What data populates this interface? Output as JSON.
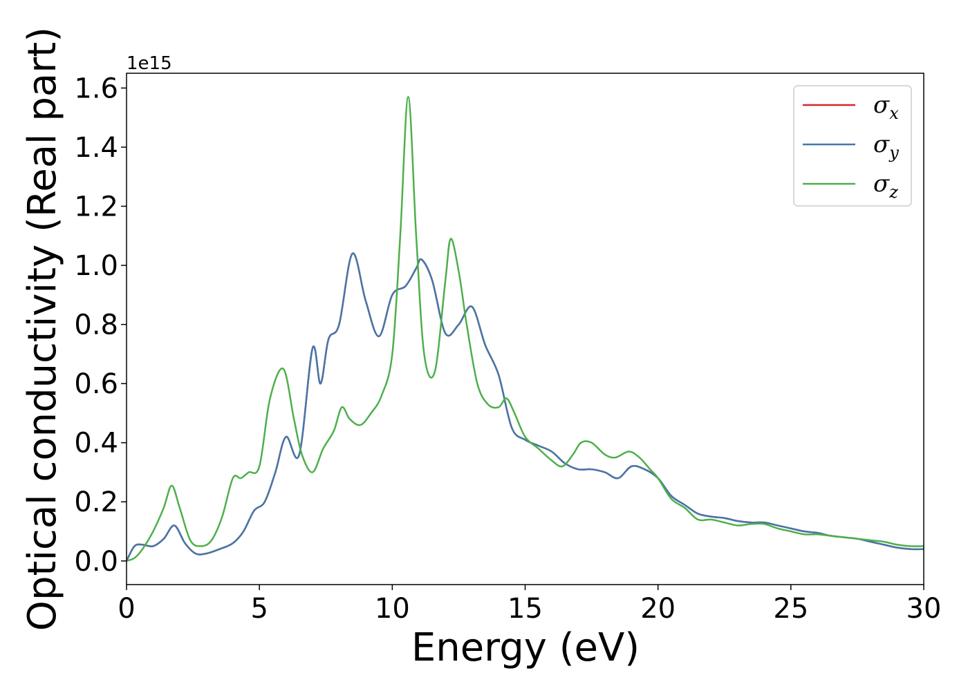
{
  "chart_data": {
    "type": "line",
    "xlabel": "Energy (eV)",
    "ylabel": "Optical conductivity (Real part)",
    "y_offset_label": "1e15",
    "xlim": [
      0,
      30
    ],
    "ylim": [
      -0.08,
      1.65
    ],
    "xticks": [
      0,
      5,
      10,
      15,
      20,
      25,
      30
    ],
    "xtick_labels": [
      "0",
      "5",
      "10",
      "15",
      "20",
      "25",
      "30"
    ],
    "yticks": [
      0.0,
      0.2,
      0.4,
      0.6,
      0.8,
      1.0,
      1.2,
      1.4,
      1.6
    ],
    "ytick_labels": [
      "0.0",
      "0.2",
      "0.4",
      "0.6",
      "0.8",
      "1.0",
      "1.2",
      "1.4",
      "1.6"
    ],
    "grid": false,
    "legend_position": "top-right",
    "series": [
      {
        "name": "σx",
        "symbol": "σ",
        "subscript": "x",
        "color": "#d62728",
        "x": [
          0,
          0.3,
          0.6,
          1.0,
          1.4,
          1.8,
          2.2,
          2.6,
          3.0,
          3.5,
          4.0,
          4.4,
          4.8,
          5.2,
          5.6,
          6.0,
          6.5,
          7.0,
          7.3,
          7.6,
          8.0,
          8.5,
          9.0,
          9.5,
          10.0,
          10.5,
          10.9,
          11.1,
          11.5,
          12.0,
          12.5,
          13.0,
          13.5,
          14.0,
          14.5,
          15.0,
          15.5,
          16.0,
          16.5,
          17.0,
          17.5,
          18.0,
          18.5,
          19.0,
          19.5,
          20.0,
          20.5,
          21.0,
          21.5,
          22.0,
          22.5,
          23.0,
          23.5,
          24.0,
          24.5,
          25.0,
          25.5,
          26.0,
          26.5,
          27.0,
          27.5,
          28.0,
          28.5,
          29.0,
          29.5,
          30.0
        ],
        "y": [
          0.0,
          0.05,
          0.055,
          0.05,
          0.075,
          0.12,
          0.06,
          0.025,
          0.025,
          0.04,
          0.06,
          0.1,
          0.17,
          0.2,
          0.3,
          0.42,
          0.36,
          0.72,
          0.6,
          0.75,
          0.8,
          1.04,
          0.88,
          0.76,
          0.9,
          0.93,
          0.99,
          1.02,
          0.95,
          0.77,
          0.8,
          0.86,
          0.73,
          0.63,
          0.45,
          0.41,
          0.39,
          0.37,
          0.33,
          0.31,
          0.31,
          0.3,
          0.28,
          0.32,
          0.31,
          0.28,
          0.22,
          0.19,
          0.16,
          0.15,
          0.145,
          0.135,
          0.13,
          0.13,
          0.12,
          0.11,
          0.1,
          0.095,
          0.085,
          0.08,
          0.075,
          0.065,
          0.055,
          0.045,
          0.04,
          0.04
        ]
      },
      {
        "name": "σy",
        "symbol": "σ",
        "subscript": "y",
        "color": "#4477aa",
        "x": [
          0,
          0.3,
          0.6,
          1.0,
          1.4,
          1.8,
          2.2,
          2.6,
          3.0,
          3.5,
          4.0,
          4.4,
          4.8,
          5.2,
          5.6,
          6.0,
          6.5,
          7.0,
          7.3,
          7.6,
          8.0,
          8.5,
          9.0,
          9.5,
          10.0,
          10.5,
          10.9,
          11.1,
          11.5,
          12.0,
          12.5,
          13.0,
          13.5,
          14.0,
          14.5,
          15.0,
          15.5,
          16.0,
          16.5,
          17.0,
          17.5,
          18.0,
          18.5,
          19.0,
          19.5,
          20.0,
          20.5,
          21.0,
          21.5,
          22.0,
          22.5,
          23.0,
          23.5,
          24.0,
          24.5,
          25.0,
          25.5,
          26.0,
          26.5,
          27.0,
          27.5,
          28.0,
          28.5,
          29.0,
          29.5,
          30.0
        ],
        "y": [
          0.0,
          0.05,
          0.055,
          0.05,
          0.075,
          0.12,
          0.06,
          0.025,
          0.025,
          0.04,
          0.06,
          0.1,
          0.17,
          0.2,
          0.3,
          0.42,
          0.36,
          0.72,
          0.6,
          0.75,
          0.8,
          1.04,
          0.88,
          0.76,
          0.9,
          0.93,
          0.99,
          1.02,
          0.95,
          0.77,
          0.8,
          0.86,
          0.73,
          0.63,
          0.45,
          0.41,
          0.39,
          0.37,
          0.33,
          0.31,
          0.31,
          0.3,
          0.28,
          0.32,
          0.31,
          0.28,
          0.22,
          0.19,
          0.16,
          0.15,
          0.145,
          0.135,
          0.13,
          0.13,
          0.12,
          0.11,
          0.1,
          0.095,
          0.085,
          0.08,
          0.075,
          0.065,
          0.055,
          0.045,
          0.04,
          0.04
        ]
      },
      {
        "name": "σz",
        "symbol": "σ",
        "subscript": "z",
        "color": "#4daf4a",
        "x": [
          0,
          0.3,
          0.6,
          1.0,
          1.4,
          1.7,
          2.0,
          2.4,
          2.8,
          3.2,
          3.6,
          4.0,
          4.3,
          4.6,
          5.0,
          5.4,
          5.9,
          6.3,
          6.6,
          7.0,
          7.4,
          7.8,
          8.1,
          8.4,
          8.8,
          9.2,
          9.6,
          10.0,
          10.3,
          10.6,
          10.9,
          11.2,
          11.6,
          12.0,
          12.2,
          12.5,
          12.8,
          13.2,
          13.6,
          14.0,
          14.3,
          14.6,
          15.0,
          15.5,
          16.0,
          16.4,
          16.8,
          17.1,
          17.5,
          18.0,
          18.4,
          18.9,
          19.3,
          19.7,
          20.0,
          20.5,
          21.0,
          21.5,
          22.0,
          22.5,
          23.0,
          23.5,
          24.0,
          24.5,
          25.0,
          25.5,
          26.0,
          26.5,
          27.0,
          27.5,
          28.0,
          28.5,
          29.0,
          29.5,
          30.0
        ],
        "y": [
          0.0,
          0.01,
          0.04,
          0.1,
          0.18,
          0.255,
          0.18,
          0.07,
          0.05,
          0.07,
          0.15,
          0.28,
          0.28,
          0.3,
          0.32,
          0.55,
          0.65,
          0.48,
          0.36,
          0.3,
          0.38,
          0.44,
          0.52,
          0.48,
          0.46,
          0.5,
          0.56,
          0.7,
          1.1,
          1.57,
          1.1,
          0.7,
          0.64,
          0.95,
          1.09,
          0.98,
          0.8,
          0.6,
          0.53,
          0.52,
          0.55,
          0.5,
          0.42,
          0.38,
          0.34,
          0.32,
          0.36,
          0.4,
          0.4,
          0.36,
          0.35,
          0.37,
          0.35,
          0.31,
          0.28,
          0.21,
          0.18,
          0.14,
          0.14,
          0.13,
          0.12,
          0.125,
          0.125,
          0.11,
          0.1,
          0.09,
          0.09,
          0.085,
          0.08,
          0.075,
          0.07,
          0.065,
          0.055,
          0.05,
          0.05
        ]
      }
    ]
  }
}
